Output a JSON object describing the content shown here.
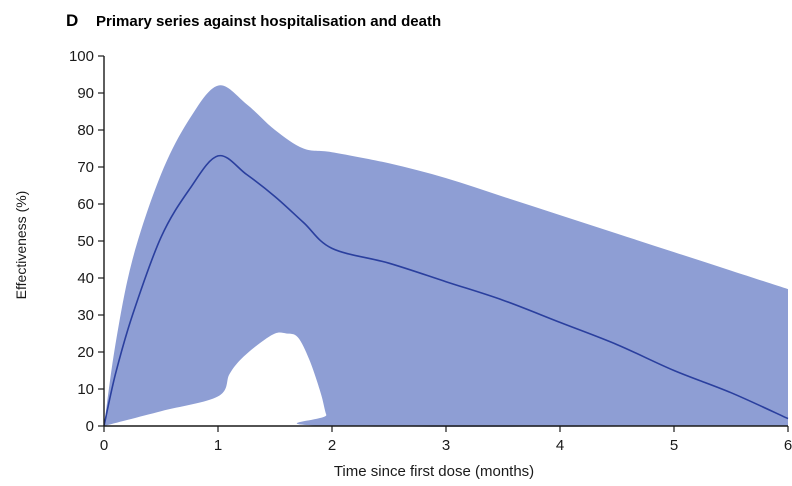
{
  "panel_letter": "D",
  "chart_data": {
    "type": "line",
    "title": "Primary series against hospitalisation and death",
    "xlabel": "Time since first dose (months)",
    "ylabel": "Effectiveness (%)",
    "xlim": [
      0,
      6
    ],
    "ylim": [
      0,
      100
    ],
    "xticks": [
      "0",
      "1",
      "2",
      "3",
      "4",
      "5",
      "6"
    ],
    "yticks": [
      "0",
      "10",
      "20",
      "30",
      "40",
      "50",
      "60",
      "70",
      "80",
      "90",
      "100"
    ],
    "grid": false,
    "legend": "none",
    "series": [
      {
        "role": "estimate",
        "color": "#2a3f9e",
        "points": [
          [
            0,
            0
          ],
          [
            0.1,
            14
          ],
          [
            0.25,
            30
          ],
          [
            0.5,
            51
          ],
          [
            0.75,
            64
          ],
          [
            1,
            73
          ],
          [
            1.25,
            68
          ],
          [
            1.5,
            62
          ],
          [
            1.75,
            55
          ],
          [
            2,
            48
          ],
          [
            2.5,
            44
          ],
          [
            3,
            39
          ],
          [
            3.5,
            34
          ],
          [
            4,
            28
          ],
          [
            4.5,
            22
          ],
          [
            5,
            15
          ],
          [
            5.5,
            9
          ],
          [
            6,
            2
          ]
        ]
      },
      {
        "role": "confidence-band",
        "color": "#8e9ed4",
        "upper": [
          [
            0,
            0
          ],
          [
            0.1,
            22
          ],
          [
            0.25,
            45
          ],
          [
            0.5,
            68
          ],
          [
            0.75,
            83
          ],
          [
            1,
            92
          ],
          [
            1.25,
            87
          ],
          [
            1.5,
            80
          ],
          [
            1.75,
            75
          ],
          [
            2,
            74
          ],
          [
            2.5,
            71
          ],
          [
            3,
            67
          ],
          [
            3.5,
            62
          ],
          [
            4,
            57
          ],
          [
            4.5,
            52
          ],
          [
            5,
            47
          ],
          [
            5.5,
            42
          ],
          [
            6,
            37
          ]
        ],
        "lower": [
          [
            0,
            0
          ],
          [
            0.5,
            4
          ],
          [
            1,
            8
          ],
          [
            1.1,
            14
          ],
          [
            1.2,
            18
          ],
          [
            1.35,
            22
          ],
          [
            1.5,
            25
          ],
          [
            1.6,
            25
          ],
          [
            1.7,
            24
          ],
          [
            1.8,
            18
          ],
          [
            1.9,
            9
          ],
          [
            1.95,
            3
          ],
          [
            2,
            0
          ],
          [
            6,
            0
          ]
        ]
      }
    ]
  }
}
